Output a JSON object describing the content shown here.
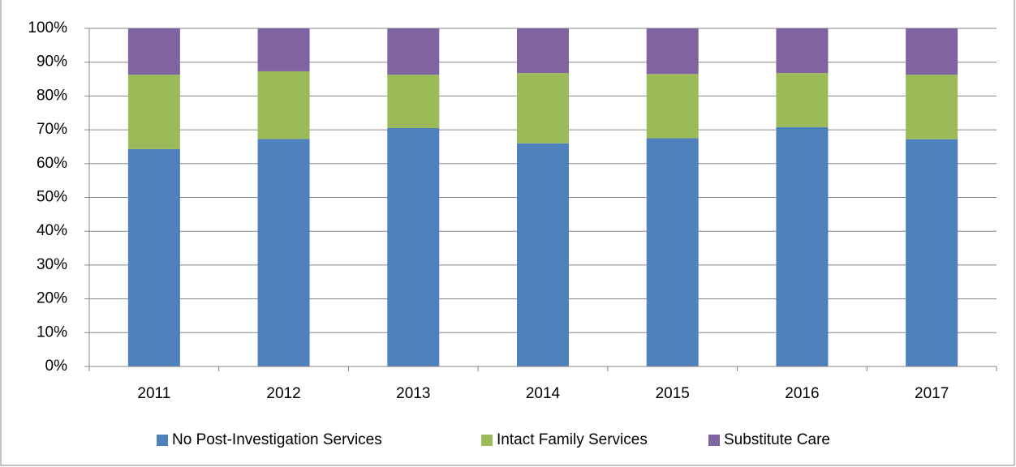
{
  "chart_data": {
    "type": "bar",
    "stacked": true,
    "categories": [
      "2011",
      "2012",
      "2013",
      "2014",
      "2015",
      "2016",
      "2017"
    ],
    "series": [
      {
        "name": "No Post-Investigation Services",
        "color": "#4f81bd",
        "values": [
          64.3,
          67.3,
          70.5,
          66.0,
          67.5,
          70.8,
          67.2
        ]
      },
      {
        "name": "Intact Family Services",
        "color": "#9bbb59",
        "values": [
          22.0,
          20.0,
          15.8,
          20.8,
          19.0,
          16.0,
          19.1
        ]
      },
      {
        "name": "Substitute Care",
        "color": "#8064a2",
        "values": [
          13.7,
          12.7,
          13.7,
          13.2,
          13.5,
          13.2,
          13.7
        ]
      }
    ],
    "ylim": [
      0,
      100
    ],
    "yticks": [
      {
        "value": 0,
        "label": "0%"
      },
      {
        "value": 10,
        "label": "10%"
      },
      {
        "value": 20,
        "label": "20%"
      },
      {
        "value": 30,
        "label": "30%"
      },
      {
        "value": 40,
        "label": "40%"
      },
      {
        "value": 50,
        "label": "50%"
      },
      {
        "value": 60,
        "label": "60%"
      },
      {
        "value": 70,
        "label": "70%"
      },
      {
        "value": 80,
        "label": "80%"
      },
      {
        "value": 90,
        "label": "90%"
      },
      {
        "value": 100,
        "label": "100%"
      }
    ],
    "grid": true,
    "legend": "bottom"
  }
}
